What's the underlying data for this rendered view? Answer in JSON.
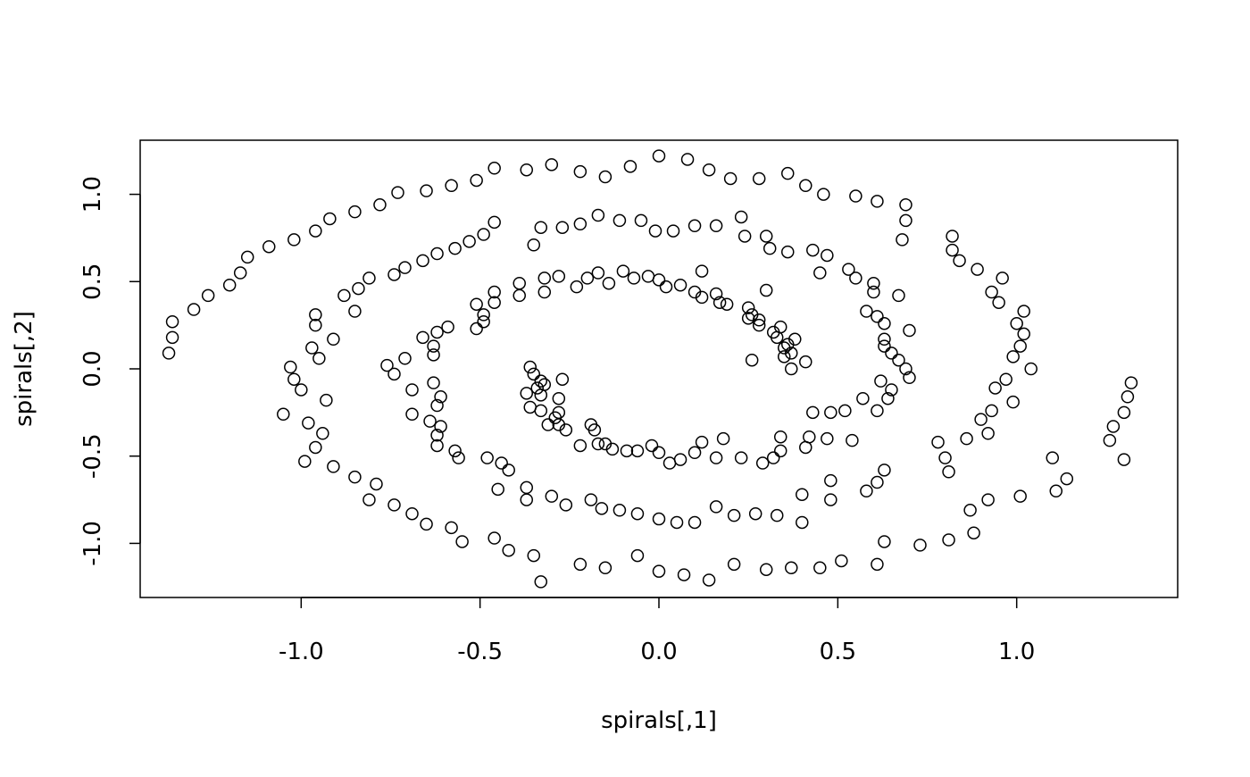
{
  "chart_data": {
    "type": "scatter",
    "title": "",
    "xlabel": "spirals[,1]",
    "ylabel": "spirals[,2]",
    "xlim": [
      -1.45,
      1.45
    ],
    "ylim": [
      -1.31,
      1.31
    ],
    "xticks": [
      -1.0,
      -0.5,
      0.0,
      0.5,
      1.0
    ],
    "xtick_labels": [
      "-1.0",
      "-0.5",
      "0.0",
      "0.5",
      "1.0"
    ],
    "yticks": [
      -1.0,
      -0.5,
      0.0,
      0.5,
      1.0
    ],
    "ytick_labels": [
      "-1.0",
      "-0.5",
      "0.0",
      "0.5",
      "1.0"
    ],
    "grid": false,
    "marker": "open-circle",
    "color": "#000000",
    "points": [
      [
        -1.36,
        0.18
      ],
      [
        -1.36,
        0.27
      ],
      [
        -1.37,
        0.09
      ],
      [
        -1.3,
        0.34
      ],
      [
        -1.26,
        0.42
      ],
      [
        -1.2,
        0.48
      ],
      [
        -1.17,
        0.55
      ],
      [
        -1.15,
        0.64
      ],
      [
        -1.09,
        0.7
      ],
      [
        -1.02,
        0.74
      ],
      [
        -0.96,
        0.79
      ],
      [
        -0.92,
        0.86
      ],
      [
        -0.85,
        0.9
      ],
      [
        -0.78,
        0.94
      ],
      [
        -0.73,
        1.01
      ],
      [
        -0.65,
        1.02
      ],
      [
        -0.58,
        1.05
      ],
      [
        -0.51,
        1.08
      ],
      [
        -0.46,
        1.15
      ],
      [
        -0.37,
        1.14
      ],
      [
        -0.3,
        1.17
      ],
      [
        -0.22,
        1.13
      ],
      [
        -0.15,
        1.1
      ],
      [
        -0.08,
        1.16
      ],
      [
        0.0,
        1.22
      ],
      [
        0.08,
        1.2
      ],
      [
        0.14,
        1.14
      ],
      [
        0.2,
        1.09
      ],
      [
        0.28,
        1.09
      ],
      [
        0.36,
        1.12
      ],
      [
        0.41,
        1.05
      ],
      [
        0.46,
        1.0
      ],
      [
        0.55,
        0.99
      ],
      [
        0.61,
        0.96
      ],
      [
        0.69,
        0.94
      ],
      [
        0.69,
        0.85
      ],
      [
        0.68,
        0.74
      ],
      [
        0.82,
        0.76
      ],
      [
        0.82,
        0.68
      ],
      [
        0.84,
        0.62
      ],
      [
        0.89,
        0.57
      ],
      [
        0.96,
        0.52
      ],
      [
        0.93,
        0.44
      ],
      [
        0.95,
        0.38
      ],
      [
        1.02,
        0.33
      ],
      [
        1.0,
        0.26
      ],
      [
        1.02,
        0.2
      ],
      [
        1.01,
        0.13
      ],
      [
        0.99,
        0.07
      ],
      [
        1.04,
        0.0
      ],
      [
        0.97,
        -0.06
      ],
      [
        0.94,
        -0.11
      ],
      [
        0.99,
        -0.19
      ],
      [
        0.93,
        -0.24
      ],
      [
        0.9,
        -0.29
      ],
      [
        0.92,
        -0.37
      ],
      [
        0.86,
        -0.4
      ],
      [
        0.78,
        -0.42
      ],
      [
        0.8,
        -0.51
      ],
      [
        0.81,
        -0.59
      ],
      [
        0.92,
        -0.75
      ],
      [
        0.87,
        -0.81
      ],
      [
        0.88,
        -0.94
      ],
      [
        0.81,
        -0.98
      ],
      [
        0.73,
        -1.01
      ],
      [
        0.63,
        -0.99
      ],
      [
        0.61,
        -1.12
      ],
      [
        0.51,
        -1.1
      ],
      [
        0.45,
        -1.14
      ],
      [
        0.37,
        -1.14
      ],
      [
        0.3,
        -1.15
      ],
      [
        0.21,
        -1.12
      ],
      [
        0.14,
        -1.21
      ],
      [
        0.07,
        -1.18
      ],
      [
        0.0,
        -1.16
      ],
      [
        -0.06,
        -1.07
      ],
      [
        -0.15,
        -1.14
      ],
      [
        -0.22,
        -1.12
      ],
      [
        -0.33,
        -1.22
      ],
      [
        -0.35,
        -1.07
      ],
      [
        -0.42,
        -1.04
      ],
      [
        -0.46,
        -0.97
      ],
      [
        -0.55,
        -0.99
      ],
      [
        -0.58,
        -0.91
      ],
      [
        -0.65,
        -0.89
      ],
      [
        -0.69,
        -0.83
      ],
      [
        -0.74,
        -0.78
      ],
      [
        -0.81,
        -0.75
      ],
      [
        -0.79,
        -0.66
      ],
      [
        -0.85,
        -0.62
      ],
      [
        -0.91,
        -0.56
      ],
      [
        -0.99,
        -0.53
      ],
      [
        -0.96,
        -0.45
      ],
      [
        -0.94,
        -0.37
      ],
      [
        -0.98,
        -0.31
      ],
      [
        -1.05,
        -0.26
      ],
      [
        -1.0,
        -0.12
      ],
      [
        -1.02,
        -0.06
      ],
      [
        -1.03,
        0.01
      ],
      [
        -0.95,
        0.06
      ],
      [
        -0.97,
        0.12
      ],
      [
        -0.91,
        0.17
      ],
      [
        -0.93,
        -0.18
      ],
      [
        1.32,
        -0.08
      ],
      [
        1.31,
        -0.16
      ],
      [
        1.3,
        -0.25
      ],
      [
        1.27,
        -0.33
      ],
      [
        1.26,
        -0.41
      ],
      [
        1.3,
        -0.52
      ],
      [
        1.14,
        -0.63
      ],
      [
        1.11,
        -0.7
      ],
      [
        1.1,
        -0.51
      ],
      [
        1.01,
        -0.73
      ],
      [
        -0.96,
        0.31
      ],
      [
        -0.96,
        0.25
      ],
      [
        -0.88,
        0.42
      ],
      [
        -0.85,
        0.33
      ],
      [
        -0.84,
        0.46
      ],
      [
        -0.81,
        0.52
      ],
      [
        -0.74,
        0.54
      ],
      [
        -0.71,
        0.58
      ],
      [
        -0.66,
        0.62
      ],
      [
        -0.62,
        0.66
      ],
      [
        -0.57,
        0.69
      ],
      [
        -0.53,
        0.73
      ],
      [
        -0.49,
        0.77
      ],
      [
        -0.46,
        0.84
      ],
      [
        -0.35,
        0.71
      ],
      [
        -0.33,
        0.81
      ],
      [
        -0.27,
        0.81
      ],
      [
        -0.22,
        0.83
      ],
      [
        -0.17,
        0.88
      ],
      [
        -0.11,
        0.85
      ],
      [
        -0.05,
        0.85
      ],
      [
        -0.01,
        0.79
      ],
      [
        0.04,
        0.79
      ],
      [
        0.1,
        0.82
      ],
      [
        0.16,
        0.82
      ],
      [
        0.23,
        0.87
      ],
      [
        0.24,
        0.76
      ],
      [
        0.3,
        0.76
      ],
      [
        0.31,
        0.69
      ],
      [
        0.36,
        0.67
      ],
      [
        0.43,
        0.68
      ],
      [
        0.47,
        0.65
      ],
      [
        0.45,
        0.55
      ],
      [
        0.53,
        0.57
      ],
      [
        0.55,
        0.52
      ],
      [
        0.6,
        0.49
      ],
      [
        0.6,
        0.44
      ],
      [
        0.67,
        0.42
      ],
      [
        0.58,
        0.33
      ],
      [
        0.61,
        0.3
      ],
      [
        0.63,
        0.26
      ],
      [
        0.7,
        0.22
      ],
      [
        0.63,
        0.17
      ],
      [
        0.63,
        0.13
      ],
      [
        0.65,
        0.09
      ],
      [
        0.67,
        0.05
      ],
      [
        0.69,
        0.0
      ],
      [
        0.7,
        -0.05
      ],
      [
        0.62,
        -0.07
      ],
      [
        0.65,
        -0.12
      ],
      [
        0.64,
        -0.17
      ],
      [
        0.57,
        -0.17
      ],
      [
        0.61,
        -0.24
      ],
      [
        0.52,
        -0.24
      ],
      [
        0.48,
        -0.25
      ],
      [
        0.43,
        -0.25
      ],
      [
        0.42,
        -0.39
      ],
      [
        0.47,
        -0.4
      ],
      [
        0.54,
        -0.41
      ],
      [
        0.41,
        -0.45
      ],
      [
        0.63,
        -0.58
      ],
      [
        0.61,
        -0.65
      ],
      [
        0.58,
        -0.7
      ],
      [
        0.48,
        -0.64
      ],
      [
        0.48,
        -0.75
      ],
      [
        0.4,
        -0.72
      ],
      [
        0.4,
        -0.88
      ],
      [
        0.33,
        -0.84
      ],
      [
        0.27,
        -0.83
      ],
      [
        0.21,
        -0.84
      ],
      [
        0.16,
        -0.79
      ],
      [
        0.1,
        -0.88
      ],
      [
        0.05,
        -0.88
      ],
      [
        0.0,
        -0.86
      ],
      [
        -0.06,
        -0.83
      ],
      [
        -0.11,
        -0.81
      ],
      [
        -0.16,
        -0.8
      ],
      [
        -0.19,
        -0.75
      ],
      [
        -0.26,
        -0.78
      ],
      [
        -0.3,
        -0.73
      ],
      [
        -0.37,
        -0.75
      ],
      [
        -0.37,
        -0.68
      ],
      [
        -0.45,
        -0.69
      ],
      [
        -0.42,
        -0.58
      ],
      [
        -0.44,
        -0.54
      ],
      [
        -0.48,
        -0.51
      ],
      [
        -0.56,
        -0.51
      ],
      [
        -0.57,
        -0.47
      ],
      [
        -0.62,
        -0.44
      ],
      [
        -0.62,
        -0.38
      ],
      [
        -0.61,
        -0.33
      ],
      [
        -0.64,
        -0.3
      ],
      [
        -0.69,
        -0.26
      ],
      [
        -0.62,
        -0.21
      ],
      [
        -0.61,
        -0.16
      ],
      [
        -0.63,
        -0.08
      ],
      [
        -0.69,
        -0.12
      ],
      [
        -0.74,
        -0.03
      ],
      [
        -0.76,
        0.02
      ],
      [
        -0.71,
        0.06
      ],
      [
        -0.63,
        0.08
      ],
      [
        -0.63,
        0.13
      ],
      [
        -0.66,
        0.18
      ],
      [
        -0.62,
        0.21
      ],
      [
        -0.59,
        0.24
      ],
      [
        -0.51,
        0.23
      ],
      [
        -0.49,
        0.27
      ],
      [
        -0.49,
        0.31
      ],
      [
        -0.51,
        0.37
      ],
      [
        -0.46,
        0.38
      ],
      [
        -0.46,
        0.44
      ],
      [
        -0.39,
        0.42
      ],
      [
        -0.39,
        0.49
      ],
      [
        -0.32,
        0.44
      ],
      [
        -0.32,
        0.52
      ],
      [
        -0.28,
        0.53
      ],
      [
        -0.23,
        0.47
      ],
      [
        -0.2,
        0.52
      ],
      [
        -0.17,
        0.55
      ],
      [
        -0.14,
        0.49
      ],
      [
        -0.1,
        0.56
      ],
      [
        -0.07,
        0.52
      ],
      [
        -0.03,
        0.53
      ],
      [
        0.0,
        0.51
      ],
      [
        0.02,
        0.47
      ],
      [
        0.06,
        0.48
      ],
      [
        0.1,
        0.44
      ],
      [
        0.12,
        0.41
      ],
      [
        0.12,
        0.56
      ],
      [
        0.16,
        0.43
      ],
      [
        0.17,
        0.38
      ],
      [
        0.19,
        0.37
      ],
      [
        0.25,
        0.35
      ],
      [
        0.26,
        0.31
      ],
      [
        0.25,
        0.29
      ],
      [
        0.28,
        0.28
      ],
      [
        0.28,
        0.25
      ],
      [
        0.3,
        0.45
      ],
      [
        0.32,
        0.21
      ],
      [
        0.34,
        0.24
      ],
      [
        0.33,
        0.18
      ],
      [
        0.35,
        0.12
      ],
      [
        0.36,
        0.14
      ],
      [
        0.38,
        0.17
      ],
      [
        0.35,
        0.07
      ],
      [
        0.37,
        0.09
      ],
      [
        0.37,
        0.0
      ],
      [
        0.41,
        0.04
      ],
      [
        0.26,
        0.05
      ],
      [
        0.34,
        -0.39
      ],
      [
        0.34,
        -0.47
      ],
      [
        0.32,
        -0.51
      ],
      [
        0.29,
        -0.54
      ],
      [
        0.23,
        -0.51
      ],
      [
        0.18,
        -0.4
      ],
      [
        0.16,
        -0.51
      ],
      [
        0.12,
        -0.42
      ],
      [
        0.1,
        -0.48
      ],
      [
        0.06,
        -0.52
      ],
      [
        0.03,
        -0.54
      ],
      [
        0.0,
        -0.48
      ],
      [
        -0.02,
        -0.44
      ],
      [
        -0.06,
        -0.47
      ],
      [
        -0.09,
        -0.47
      ],
      [
        -0.13,
        -0.46
      ],
      [
        -0.15,
        -0.43
      ],
      [
        -0.17,
        -0.43
      ],
      [
        -0.22,
        -0.44
      ],
      [
        -0.18,
        -0.35
      ],
      [
        -0.19,
        -0.32
      ],
      [
        -0.26,
        -0.35
      ],
      [
        -0.28,
        -0.32
      ],
      [
        -0.31,
        -0.32
      ],
      [
        -0.28,
        -0.25
      ],
      [
        -0.29,
        -0.28
      ],
      [
        -0.28,
        -0.17
      ],
      [
        -0.33,
        -0.24
      ],
      [
        -0.36,
        -0.22
      ],
      [
        -0.33,
        -0.15
      ],
      [
        -0.37,
        -0.14
      ],
      [
        -0.32,
        -0.09
      ],
      [
        -0.34,
        -0.11
      ],
      [
        -0.27,
        -0.06
      ],
      [
        -0.35,
        -0.03
      ],
      [
        -0.36,
        0.01
      ],
      [
        -0.33,
        -0.07
      ]
    ]
  }
}
